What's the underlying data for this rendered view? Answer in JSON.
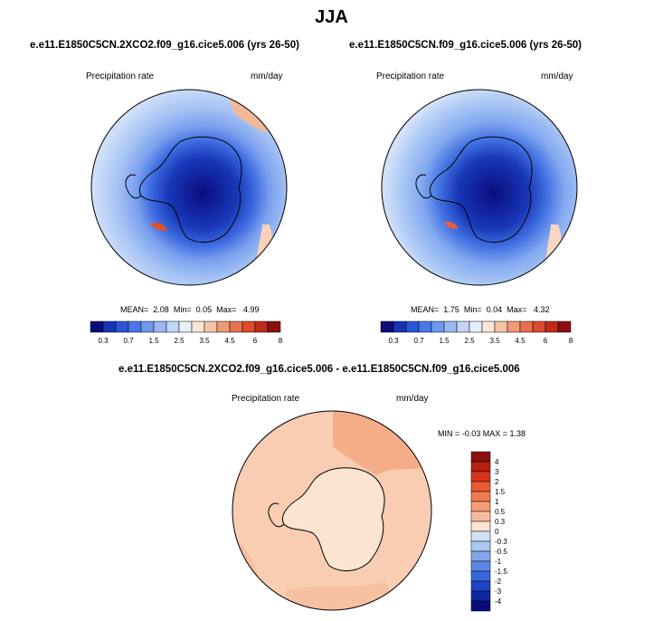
{
  "title": "JJA",
  "panels": [
    {
      "subtitle": "e.e11.E1850C5CN.2XCO2.f09_g16.cice5.006 (yrs 26-50)",
      "variable": "Precipitation rate",
      "units": "mm/day",
      "stats": {
        "mean_label": "MEAN=",
        "mean": "2.08",
        "min_label": "Min=",
        "min": "0.05",
        "max_label": "Max=",
        "max": "4.99"
      }
    },
    {
      "subtitle": "e.e11.E1850C5CN.f09_g16.cice5.006 (yrs 26-50)",
      "variable": "Precipitation rate",
      "units": "mm/day",
      "stats": {
        "mean_label": "MEAN=",
        "mean": "1.75",
        "min_label": "Min=",
        "min": "0.04",
        "max_label": "Max=",
        "max": "4.32"
      }
    }
  ],
  "difference": {
    "subtitle": "e.e11.E1850C5CN.2XCO2.f09_g16.cice5.006 - e.e11.E1850C5CN.f09_g16.cice5.006",
    "variable": "Precipitation rate",
    "units": "mm/day",
    "stats": "MIN =  -0.03 MAX =   1.38"
  },
  "abs_colorbar": {
    "labels": [
      "0.3",
      "0.7",
      "1.5",
      "2.5",
      "3.5",
      "4.5",
      "6",
      "8"
    ],
    "colors": [
      "#0a0a7a",
      "#1434b4",
      "#2a55d8",
      "#4a78ea",
      "#7098ee",
      "#9ab8f2",
      "#c2d6f6",
      "#e6f0fa",
      "#fbe6d6",
      "#f4c4a6",
      "#ee9a78",
      "#e87050",
      "#de4a2c",
      "#c02a18",
      "#8a1010"
    ]
  },
  "diff_colorbar": {
    "labels": [
      "4",
      "3",
      "2",
      "1.5",
      "1",
      "0.5",
      "0.3",
      "0",
      "-0.3",
      "-0.5",
      "-1",
      "-1.5",
      "-2",
      "-3",
      "-4"
    ],
    "colors": [
      "#8a1010",
      "#b82010",
      "#d8341c",
      "#ea5a34",
      "#f07a50",
      "#f49c78",
      "#f7bc9e",
      "#fbe4d2",
      "#d2e2f6",
      "#aac8f0",
      "#82a6ec",
      "#5c86e6",
      "#3a66dc",
      "#1c44c4",
      "#0e28a0",
      "#0a0a7a"
    ]
  },
  "map_colors": {
    "ocean_mid": "#8fb4f0",
    "ocean_light": "#b8d0f6",
    "continent_dark": "#0b0b80",
    "coast_blue": "#2c56d6",
    "warm_light": "#f6c6a6",
    "diff_base": "#fbe3d1",
    "diff_warm": "#f5b08c"
  }
}
